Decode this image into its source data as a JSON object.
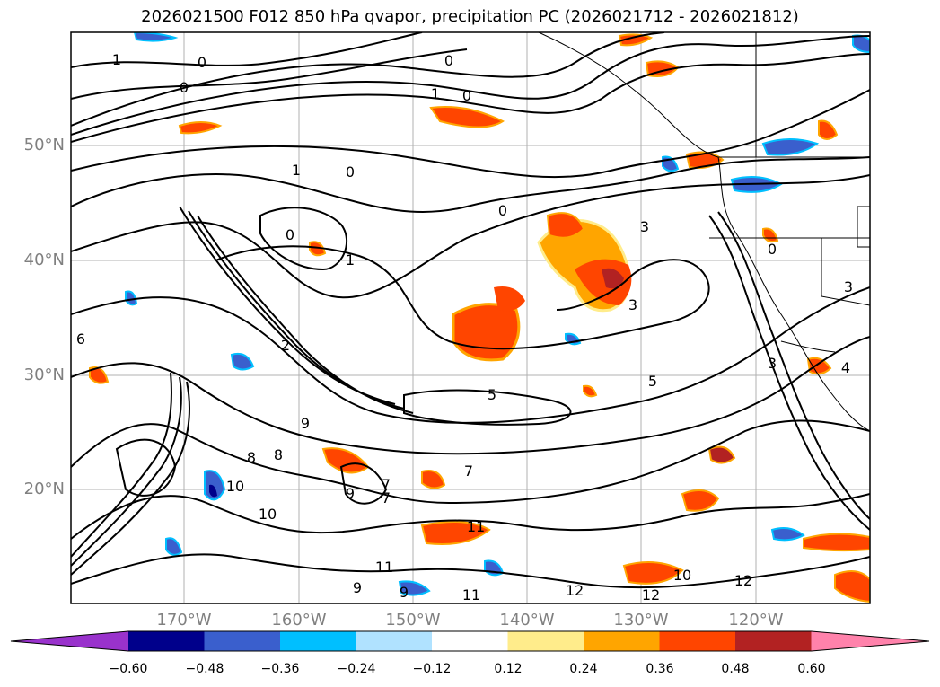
{
  "title": "2026021500 F012 850 hPa qvapor, precipitation PC (2026021712 - 2026021812)",
  "map": {
    "lat_labels": [
      "50°N",
      "40°N",
      "30°N",
      "20°N"
    ],
    "lon_labels": [
      "170°W",
      "160°W",
      "150°W",
      "140°W",
      "130°W",
      "120°W"
    ],
    "contour_labels": [
      "1",
      "0",
      "0",
      "0",
      "1",
      "0",
      "1",
      "0",
      "0",
      "1",
      "0",
      "3",
      "0",
      "3",
      "3",
      "5",
      "7",
      "9",
      "9",
      "10",
      "10",
      "11",
      "11",
      "11",
      "12",
      "12",
      "12",
      "10",
      "9",
      "7",
      "5",
      "3",
      "4",
      "8",
      "8",
      "7",
      "6",
      "2",
      "9"
    ],
    "colors": {
      "contour": "#000000",
      "grid": "#b0b0b0",
      "coast": "#000000"
    }
  },
  "colorbar": {
    "ticks": [
      "−0.60",
      "−0.48",
      "−0.36",
      "−0.24",
      "−0.12",
      "0.12",
      "0.24",
      "0.36",
      "0.48",
      "0.60"
    ],
    "colors": [
      "#9932cc",
      "#00008b",
      "#3a5fcd",
      "#00bfff",
      "#b0e2ff",
      "#ffffff",
      "#ffec8b",
      "#ffa500",
      "#ff4500",
      "#b22222",
      "#ff82ab"
    ]
  }
}
